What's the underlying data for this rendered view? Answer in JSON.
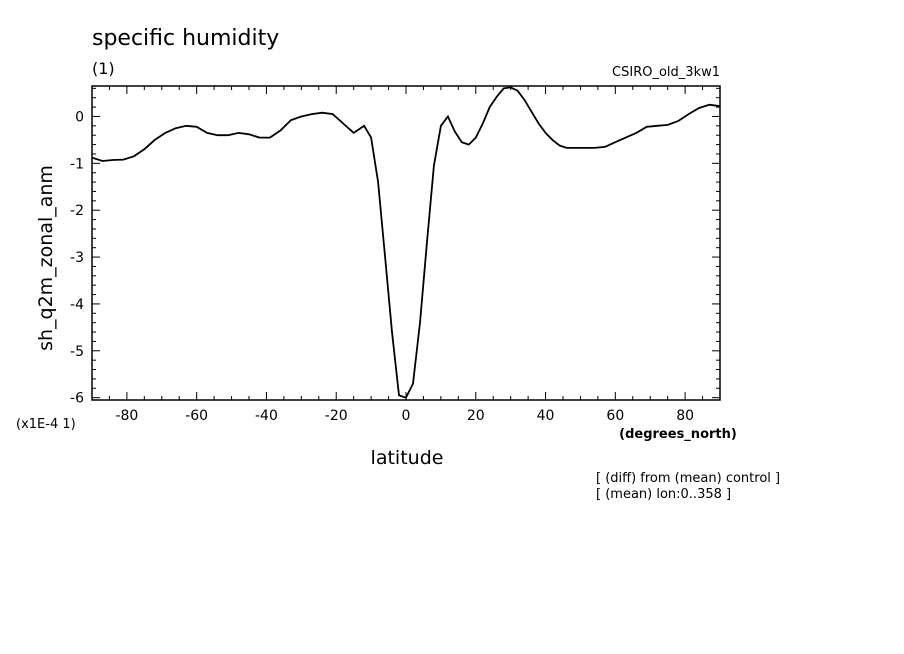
{
  "chart_data": {
    "type": "line",
    "title": "specific humidity",
    "subtitle": "(1)",
    "model_label": "CSIRO_old_3kw1",
    "xlabel": "latitude",
    "x_units": "(degrees_north)",
    "ylabel": "sh_q2m_zonal_anm",
    "y_scale_note": "(x1E-4 1)",
    "footnotes": [
      "[ (diff) from (mean) control ]",
      "[ (mean) lon:0..358 ]"
    ],
    "xlim": [
      -90,
      90
    ],
    "ylim": [
      -6.05,
      0.65
    ],
    "x_ticks": [
      -80,
      -60,
      -40,
      -20,
      0,
      20,
      40,
      60,
      80
    ],
    "y_ticks": [
      0,
      -1,
      -2,
      -3,
      -4,
      -5,
      -6
    ],
    "grid": false,
    "series": [
      {
        "x": [
          -90,
          -87,
          -84,
          -81,
          -78,
          -75,
          -72,
          -69,
          -66,
          -63,
          -60,
          -57,
          -54,
          -51,
          -48,
          -45,
          -42,
          -39,
          -36,
          -33,
          -30,
          -27,
          -24,
          -21,
          -18,
          -15,
          -12,
          -10,
          -8,
          -6,
          -4,
          -2,
          0,
          2,
          4,
          6,
          8,
          10,
          12,
          14,
          16,
          18,
          20,
          22,
          24,
          26,
          28,
          30,
          32,
          34,
          36,
          38,
          40,
          42,
          44,
          46,
          48,
          51,
          54,
          57,
          60,
          63,
          66,
          69,
          72,
          75,
          78,
          81,
          84,
          87,
          90
        ],
        "y": [
          -0.88,
          -0.95,
          -0.93,
          -0.92,
          -0.85,
          -0.7,
          -0.5,
          -0.35,
          -0.25,
          -0.2,
          -0.22,
          -0.35,
          -0.4,
          -0.4,
          -0.35,
          -0.38,
          -0.45,
          -0.45,
          -0.3,
          -0.08,
          0.0,
          0.05,
          0.08,
          0.05,
          -0.15,
          -0.35,
          -0.2,
          -0.45,
          -1.4,
          -3.0,
          -4.6,
          -5.95,
          -6.0,
          -5.7,
          -4.4,
          -2.7,
          -1.05,
          -0.2,
          0.0,
          -0.32,
          -0.55,
          -0.6,
          -0.45,
          -0.15,
          0.2,
          0.42,
          0.6,
          0.62,
          0.55,
          0.35,
          0.1,
          -0.15,
          -0.35,
          -0.5,
          -0.62,
          -0.67,
          -0.67,
          -0.67,
          -0.67,
          -0.65,
          -0.55,
          -0.45,
          -0.35,
          -0.22,
          -0.2,
          -0.18,
          -0.1,
          0.05,
          0.18,
          0.25,
          0.22
        ]
      }
    ]
  }
}
